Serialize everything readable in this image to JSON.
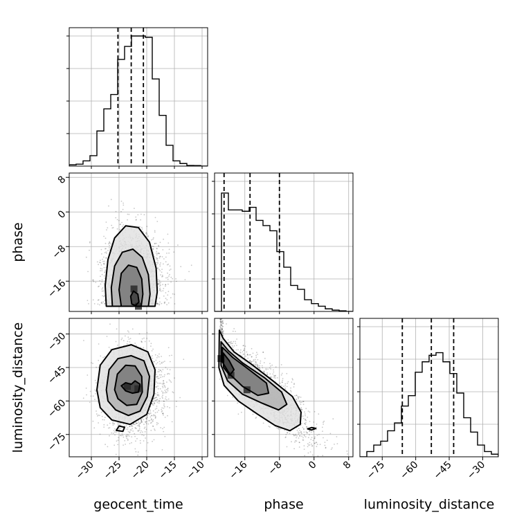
{
  "figure": {
    "kind": "corner-plot"
  },
  "chart_data": {
    "type": "corner",
    "grid": true,
    "parameters": [
      {
        "label": "geocent_time",
        "range": [
          -34,
          -9
        ],
        "ticks": [
          -30,
          -25,
          -20,
          -15,
          -10
        ],
        "quantiles": [
          -25.2,
          -22.8,
          -20.6
        ],
        "hist": {
          "edges_start": -34,
          "bin_width": 1.25,
          "counts": [
            0.01,
            0.015,
            0.04,
            0.08,
            0.27,
            0.44,
            0.55,
            0.82,
            0.92,
            1.0,
            1.0,
            0.99,
            0.67,
            0.39,
            0.16,
            0.04,
            0.02,
            0.005,
            0.004,
            0,
            0
          ]
        }
      },
      {
        "label": "phase",
        "range": [
          -23,
          9
        ],
        "ticks": [
          -16,
          -8,
          0,
          8
        ],
        "quantiles": [
          -20.8,
          -14.8,
          -8.0
        ],
        "hist": {
          "edges_start": -23,
          "bin_width": 1.6,
          "counts": [
            0.0,
            0.91,
            0.78,
            0.78,
            0.77,
            0.8,
            0.7,
            0.66,
            0.62,
            0.46,
            0.34,
            0.2,
            0.17,
            0.09,
            0.06,
            0.04,
            0.02,
            0.01,
            0.005,
            0.0
          ]
        }
      },
      {
        "label": "luminosity_distance",
        "range": [
          -85,
          -23
        ],
        "ticks": [
          -75,
          -60,
          -45,
          -30
        ],
        "quantiles": [
          -66,
          -53,
          -43
        ],
        "hist": {
          "edges_start": -85,
          "bin_width": 3.1,
          "counts": [
            0.0,
            0.04,
            0.09,
            0.12,
            0.2,
            0.26,
            0.39,
            0.47,
            0.65,
            0.73,
            0.78,
            0.8,
            0.73,
            0.64,
            0.49,
            0.3,
            0.19,
            0.09,
            0.04,
            0.02,
            0.0
          ]
        }
      }
    ],
    "pairs": [
      {
        "x": "geocent_time",
        "y": "phase",
        "mean": [
          -22.5,
          -15
        ],
        "std": [
          2.7,
          5.5
        ],
        "corr": 0.0,
        "clip": {
          "y_min": -21.5
        },
        "blobs": [
          [
            -22.3,
            -17.8
          ],
          [
            -21.5,
            -21.8
          ]
        ],
        "contours": [
          {
            "level": 1,
            "path": [
              [
                -27.3,
                -21.8
              ],
              [
                -27.5,
                -17
              ],
              [
                -27.0,
                -11
              ],
              [
                -25.8,
                -6
              ],
              [
                -23.8,
                -3.2
              ],
              [
                -21.5,
                -3.6
              ],
              [
                -19.5,
                -7
              ],
              [
                -18.3,
                -13
              ],
              [
                -18.1,
                -18.5
              ],
              [
                -18.5,
                -21.8
              ]
            ]
          },
          {
            "level": 2,
            "path": [
              [
                -26.2,
                -21.8
              ],
              [
                -26.4,
                -17.5
              ],
              [
                -25.8,
                -12.5
              ],
              [
                -24.4,
                -9.3
              ],
              [
                -22.5,
                -8.6
              ],
              [
                -20.8,
                -10.5
              ],
              [
                -19.7,
                -14.5
              ],
              [
                -19.4,
                -19
              ],
              [
                -19.7,
                -21.8
              ]
            ]
          },
          {
            "level": 3,
            "path": [
              [
                -24.6,
                -21.8
              ],
              [
                -25.0,
                -18
              ],
              [
                -24.6,
                -14.2
              ],
              [
                -23.3,
                -12.3
              ],
              [
                -21.8,
                -12.8
              ],
              [
                -20.9,
                -15.5
              ],
              [
                -20.7,
                -19
              ],
              [
                -21.0,
                -21.8
              ]
            ]
          },
          {
            "level": 4,
            "path": [
              [
                -22.7,
                -21.3
              ],
              [
                -22.9,
                -19.5
              ],
              [
                -22.4,
                -18.3
              ],
              [
                -21.6,
                -19
              ],
              [
                -21.4,
                -20.8
              ],
              [
                -22.0,
                -21.6
              ]
            ]
          }
        ]
      },
      {
        "x": "geocent_time",
        "y": "luminosity_distance",
        "mean": [
          -22.5,
          -55
        ],
        "std": [
          2.7,
          9.5
        ],
        "corr": 0.0,
        "clip": null,
        "blobs": [
          [
            -23.5,
            -53.5
          ],
          [
            -21.6,
            -54.5
          ]
        ],
        "contours": [
          {
            "level": 1,
            "path": [
              [
                -29.0,
                -55
              ],
              [
                -28.4,
                -44
              ],
              [
                -26.3,
                -37
              ],
              [
                -22.8,
                -34.8
              ],
              [
                -19.8,
                -38
              ],
              [
                -18.5,
                -46
              ],
              [
                -18.7,
                -57
              ],
              [
                -20.0,
                -66
              ],
              [
                -23.0,
                -70.5
              ],
              [
                -26.3,
                -68.5
              ],
              [
                -28.4,
                -63
              ]
            ]
          },
          {
            "level": 2,
            "path": [
              [
                -27.3,
                -55
              ],
              [
                -26.8,
                -46
              ],
              [
                -25.2,
                -41
              ],
              [
                -22.8,
                -39.7
              ],
              [
                -20.5,
                -42
              ],
              [
                -19.5,
                -49
              ],
              [
                -19.9,
                -58
              ],
              [
                -21.2,
                -64.5
              ],
              [
                -23.3,
                -66.5
              ],
              [
                -25.6,
                -64
              ],
              [
                -27.0,
                -60
              ]
            ]
          },
          {
            "level": 3,
            "path": [
              [
                -25.8,
                -55
              ],
              [
                -25.3,
                -48
              ],
              [
                -23.8,
                -44
              ],
              [
                -22.1,
                -44.3
              ],
              [
                -20.9,
                -49
              ],
              [
                -20.8,
                -56
              ],
              [
                -21.8,
                -61.5
              ],
              [
                -23.6,
                -62
              ],
              [
                -25.2,
                -59
              ]
            ]
          },
          {
            "level": 4,
            "path": [
              [
                -24.6,
                -53.2
              ],
              [
                -23.8,
                -51.8
              ],
              [
                -22.8,
                -52.5
              ],
              [
                -22.1,
                -51
              ],
              [
                -21.2,
                -52.5
              ],
              [
                -21.5,
                -56
              ],
              [
                -22.6,
                -56.5
              ],
              [
                -23.8,
                -55.5
              ]
            ]
          },
          {
            "level": 5,
            "path": [
              [
                -25.5,
                -73.2
              ],
              [
                -25.0,
                -71.2
              ],
              [
                -24.0,
                -71.8
              ],
              [
                -24.3,
                -73.6
              ]
            ]
          }
        ]
      },
      {
        "x": "phase",
        "y": "luminosity_distance",
        "mean": [
          -13,
          -53
        ],
        "std": [
          6.5,
          12
        ],
        "corr": -0.88,
        "clip": {
          "x_min": -21.8
        },
        "blobs": [
          [
            -21.5,
            -41
          ],
          [
            -19.2,
            -48.5
          ],
          [
            -15.5,
            -55
          ]
        ],
        "contours": [
          {
            "level": 1,
            "path": [
              [
                -21.9,
                -28.3
              ],
              [
                -21.0,
                -32
              ],
              [
                -18.5,
                -38
              ],
              [
                -14.5,
                -43.5
              ],
              [
                -9.5,
                -51
              ],
              [
                -5.0,
                -58
              ],
              [
                -3.0,
                -65
              ],
              [
                -3.2,
                -70.5
              ],
              [
                -5.6,
                -73.3
              ],
              [
                -9.0,
                -71
              ],
              [
                -13.0,
                -66
              ],
              [
                -17.5,
                -60
              ],
              [
                -20.8,
                -53
              ],
              [
                -22.0,
                -45
              ]
            ]
          },
          {
            "level": 2,
            "path": [
              [
                -21.5,
                -33.5
              ],
              [
                -19.8,
                -37.5
              ],
              [
                -16.5,
                -43
              ],
              [
                -11.5,
                -49.5
              ],
              [
                -7.5,
                -56
              ],
              [
                -6.3,
                -61.5
              ],
              [
                -8.2,
                -64
              ],
              [
                -12.0,
                -61
              ],
              [
                -16.5,
                -57
              ],
              [
                -20.0,
                -51
              ],
              [
                -21.5,
                -44
              ]
            ]
          },
          {
            "level": 3,
            "path": [
              [
                -21.2,
                -36
              ],
              [
                -18.8,
                -40.5
              ],
              [
                -15.0,
                -46
              ],
              [
                -11.0,
                -52
              ],
              [
                -10.5,
                -56.5
              ],
              [
                -13.0,
                -57.5
              ],
              [
                -16.5,
                -53.5
              ],
              [
                -19.5,
                -48
              ],
              [
                -21.2,
                -42.5
              ]
            ]
          },
          {
            "level": 4,
            "path": [
              [
                -21.0,
                -38.5
              ],
              [
                -19.6,
                -42
              ],
              [
                -18.5,
                -46
              ],
              [
                -19.5,
                -48.5
              ],
              [
                -20.9,
                -45
              ]
            ]
          },
          {
            "level": 5,
            "path": [
              [
                -1.5,
                -72.5
              ],
              [
                -0.5,
                -71.9
              ],
              [
                0.4,
                -72.3
              ],
              [
                -0.6,
                -73.0
              ]
            ]
          }
        ]
      }
    ]
  }
}
